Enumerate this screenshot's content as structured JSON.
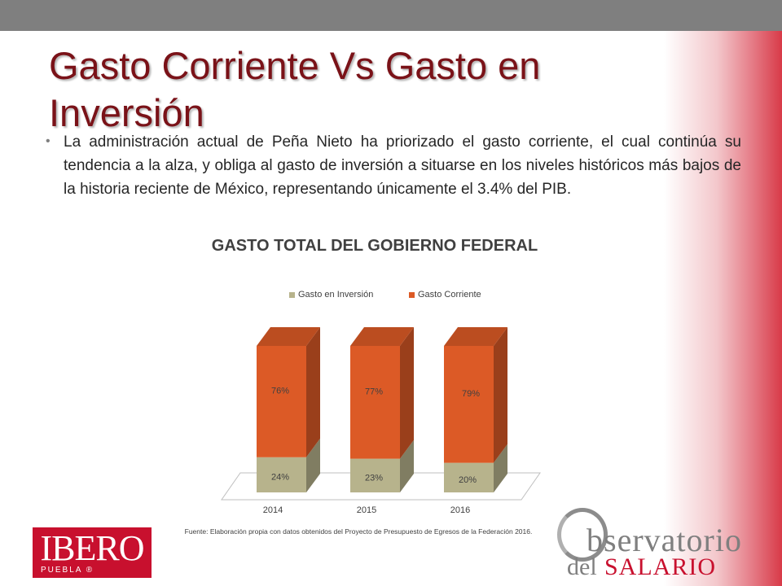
{
  "slide": {
    "title": "Gasto Corriente Vs Gasto en Inversión",
    "bullet": "La administración actual de Peña Nieto ha priorizado el gasto corriente, el cual continúa su tendencia a la alza, y obliga al gasto de inversión a situarse en los niveles históricos más bajos de la historia reciente de México, representando únicamente el 3.4% del PIB.",
    "source": "Fuente: Elaboración propia con datos obtenidos del Proyecto de Presupuesto de Egresos de la Federación 2016.",
    "bullet_symbol": "•"
  },
  "logos": {
    "ibero_main": "IBERO",
    "ibero_sub": "PUEBLA ®",
    "observatorio_word": "bservatorio",
    "observatorio_del": "del",
    "observatorio_salario": "SALARIO"
  },
  "colors": {
    "title": "#7a1218",
    "inversion": "#b7b38c",
    "corriente": "#dc5a26"
  },
  "chart_data": {
    "type": "bar",
    "stacked": true,
    "three_d": true,
    "title": "GASTO TOTAL DEL GOBIERNO FEDERAL",
    "categories": [
      "2014",
      "2015",
      "2016"
    ],
    "series": [
      {
        "name": "Gasto en Inversión",
        "values": [
          24,
          23,
          20
        ],
        "labels": [
          "24%",
          "23%",
          "20%"
        ],
        "color": "#b7b38c"
      },
      {
        "name": "Gasto Corriente",
        "values": [
          76,
          77,
          79
        ],
        "labels": [
          "76%",
          "77%",
          "79%"
        ],
        "color": "#dc5a26"
      }
    ],
    "legend_position": "top",
    "ylim": [
      0,
      100
    ],
    "grid": false
  }
}
